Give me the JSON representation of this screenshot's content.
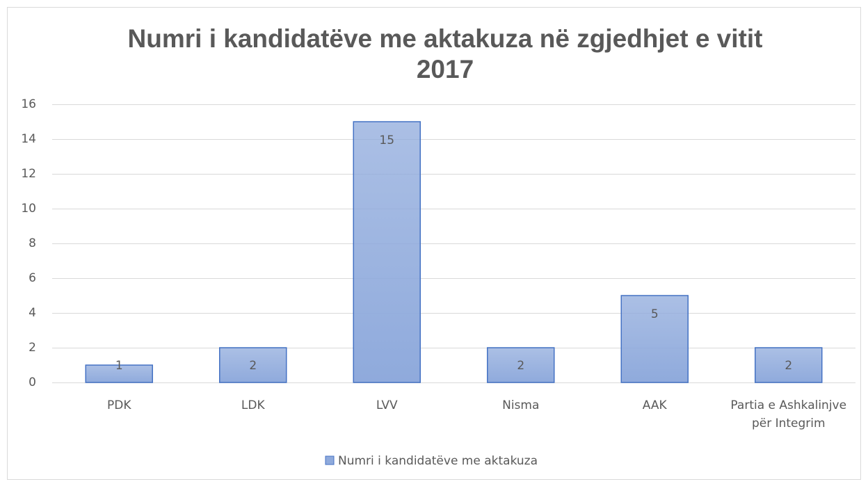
{
  "chart_data": {
    "type": "bar",
    "title": "Numri i kandidatëve me aktakuza në zgjedhjet e vitit 2017",
    "categories": [
      "PDK",
      "LDK",
      "LVV",
      "Nisma",
      "AAK",
      "Partia e Ashkalinjve për Integrim"
    ],
    "series": [
      {
        "name": "Numri i kandidatëve me aktakuza",
        "color": "#8faadc",
        "edge_color": "#4472c4",
        "values": [
          1,
          2,
          15,
          2,
          5,
          2
        ]
      }
    ],
    "ylim": [
      0,
      16
    ],
    "yticks": [
      0,
      2,
      4,
      6,
      8,
      10,
      12,
      14,
      16
    ],
    "grid": true,
    "legend": "bottom"
  }
}
